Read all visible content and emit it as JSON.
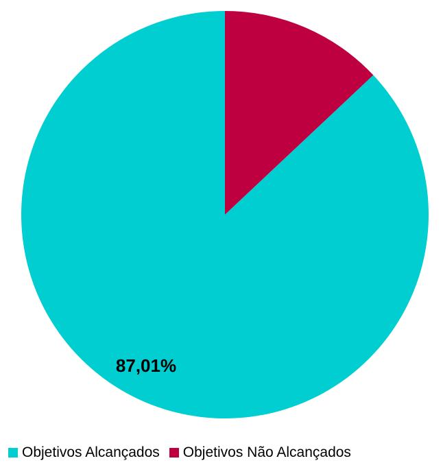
{
  "chart_data": {
    "type": "pie",
    "title": "",
    "slices": [
      {
        "label": "Objetivos Alcançados",
        "value": 87.01,
        "color": "#00CED1",
        "data_label": "87,01%"
      },
      {
        "label": "Objetivos Não Alcançados",
        "value": 12.99,
        "color": "#BE0041",
        "data_label": ""
      }
    ],
    "legend_position": "bottom"
  }
}
